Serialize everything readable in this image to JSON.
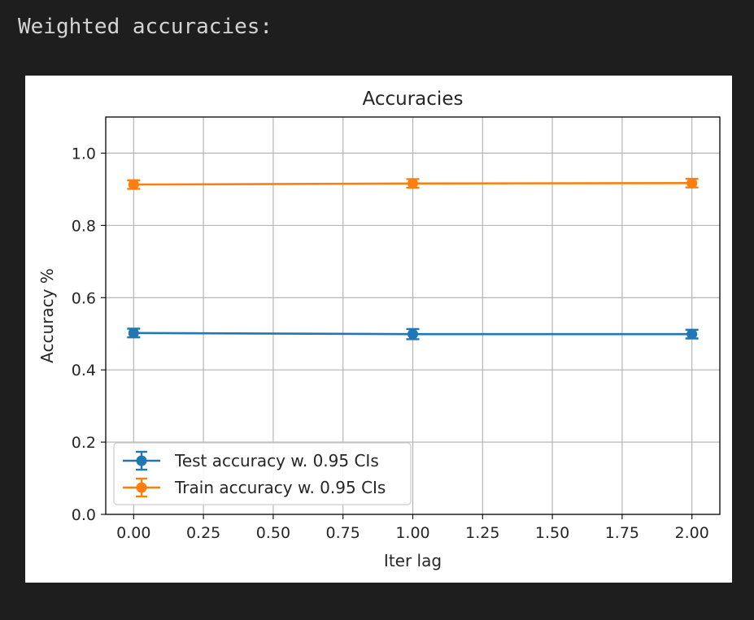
{
  "page": {
    "background": "#1e1e1e",
    "output_text": "Weighted accuracies:"
  },
  "chart_data": {
    "type": "line",
    "title": "Accuracies",
    "xlabel": "Iter lag",
    "ylabel": "Accuracy %",
    "xlim": [
      -0.1,
      2.1
    ],
    "ylim": [
      0.0,
      1.1
    ],
    "x_ticks": [
      0.0,
      0.25,
      0.5,
      0.75,
      1.0,
      1.25,
      1.5,
      1.75,
      2.0
    ],
    "x_tick_labels": [
      "0.00",
      "0.25",
      "0.50",
      "0.75",
      "1.00",
      "1.25",
      "1.50",
      "1.75",
      "2.00"
    ],
    "y_ticks": [
      0.0,
      0.2,
      0.4,
      0.6,
      0.8,
      1.0
    ],
    "y_tick_labels": [
      "0.0",
      "0.2",
      "0.4",
      "0.6",
      "0.8",
      "1.0"
    ],
    "grid": true,
    "legend_position": "lower-left",
    "x": [
      0,
      1,
      2
    ],
    "series": [
      {
        "name": "Test accuracy w. 0.95 CIs",
        "color": "#1f77b4",
        "marker": "circle",
        "values": [
          0.502,
          0.499,
          0.499
        ],
        "ci_half_width": [
          0.012,
          0.014,
          0.012
        ]
      },
      {
        "name": "Train accuracy w. 0.95 CIs",
        "color": "#ff7f0e",
        "marker": "circle",
        "values": [
          0.913,
          0.916,
          0.917
        ],
        "ci_half_width": [
          0.012,
          0.012,
          0.012
        ]
      }
    ]
  }
}
